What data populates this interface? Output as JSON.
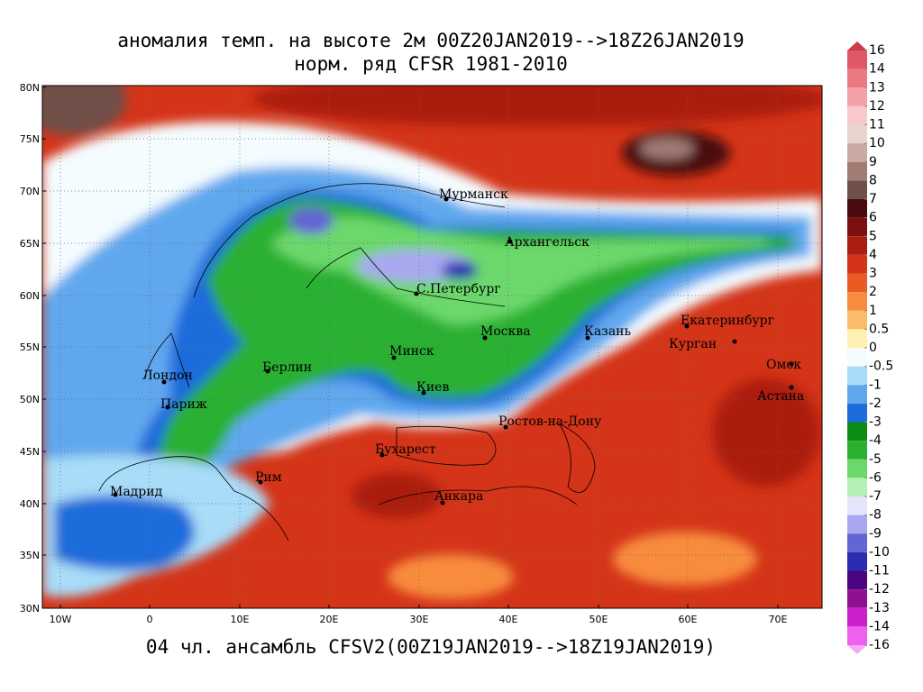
{
  "title": [
    "аномалия темп. на высоте 2м 00Z20JAN2019-->18Z26JAN2019",
    "норм. ряд CFSR 1981-2010"
  ],
  "footer": "04 чл. ансамбль CFSV2(00Z19JAN2019-->18Z19JAN2019)",
  "lat_ticks": [
    "80N",
    "75N",
    "70N",
    "65N",
    "60N",
    "55N",
    "50N",
    "45N",
    "40N",
    "35N",
    "30N"
  ],
  "lon_ticks": [
    "10W",
    "0",
    "10E",
    "20E",
    "30E",
    "40E",
    "50E",
    "60E",
    "70E"
  ],
  "cities": [
    "Мурманск",
    "Архангельск",
    "С.Петербург",
    "Москва",
    "Казань",
    "Екатеринбург",
    "Курган",
    "Омск",
    "Астана",
    "Минск",
    "Киев",
    "Берлин",
    "Лондон",
    "Париж",
    "Ростов-на-Дону",
    "Бухарест",
    "Рим",
    "Мадрид",
    "Анкара"
  ],
  "colorbar": {
    "labels": [
      16,
      14,
      13,
      12,
      11,
      10,
      9,
      8,
      7,
      6,
      5,
      4,
      3,
      2,
      1,
      0.5,
      0,
      -0.5,
      -1,
      -2,
      -3,
      -4,
      -5,
      -6,
      -7,
      -8,
      -9,
      -10,
      -11,
      -12,
      -13,
      -14,
      -16
    ],
    "colors": [
      "#c83c4c",
      "#e05868",
      "#ec7884",
      "#f4a0a8",
      "#fac8cc",
      "#e8d4cc",
      "#c8aaa2",
      "#a07c74",
      "#70504a",
      "#4a0c0c",
      "#7c1010",
      "#ac1c10",
      "#d43418",
      "#ec5a24",
      "#f88c3c",
      "#fbbb68",
      "#fdf0b0",
      "#f4fcff",
      "#a8dcf8",
      "#60a8ee",
      "#1c6cdc",
      "#0c8c14",
      "#2cb030",
      "#6cd86c",
      "#b4f0b4",
      "#e4e4fc",
      "#a8a8f0",
      "#6464d4",
      "#2c2cb0",
      "#4c0480",
      "#901090",
      "#cc20cc",
      "#ee60ee",
      "#f8a8f8"
    ]
  }
}
